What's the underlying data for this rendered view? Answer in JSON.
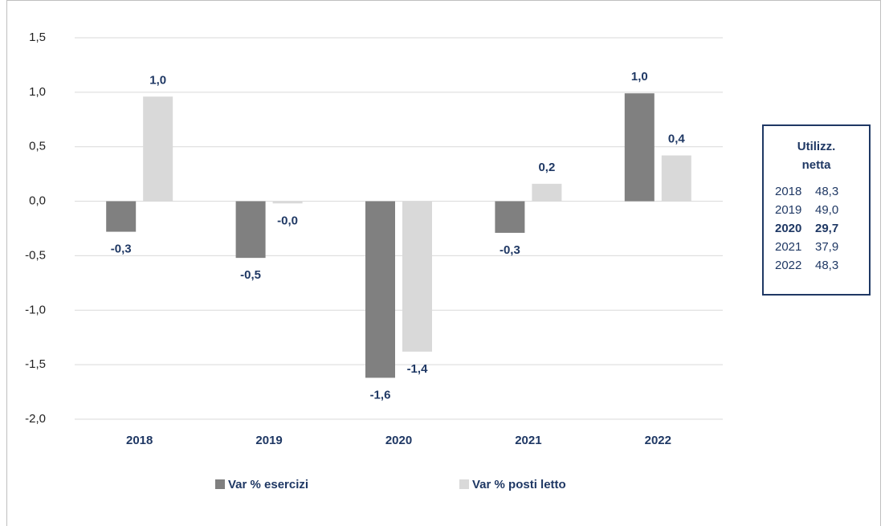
{
  "chart_data": {
    "type": "bar",
    "categories": [
      "2018",
      "2019",
      "2020",
      "2021",
      "2022"
    ],
    "series": [
      {
        "name": "Var % esercizi",
        "color": "#808080",
        "values": [
          -0.28,
          -0.52,
          -1.62,
          -0.29,
          0.99
        ],
        "value_labels": [
          "-0,3",
          "-0,5",
          "-1,6",
          "-0,3",
          "1,0"
        ]
      },
      {
        "name": "Var % posti letto",
        "color": "#d9d9d9",
        "values": [
          0.96,
          -0.02,
          -1.38,
          0.16,
          0.42
        ],
        "value_labels": [
          "1,0",
          "-0,0",
          "-1,4",
          "0,2",
          "0,4"
        ]
      }
    ],
    "ylim": [
      -2.0,
      1.5
    ],
    "yticks": [
      {
        "value": -2.0,
        "label": "-2,0"
      },
      {
        "value": -1.5,
        "label": "-1,5"
      },
      {
        "value": -1.0,
        "label": "-1,0"
      },
      {
        "value": -0.5,
        "label": "-0,5"
      },
      {
        "value": 0.0,
        "label": "0,0"
      },
      {
        "value": 0.5,
        "label": "0,5"
      },
      {
        "value": 1.0,
        "label": "1,0"
      },
      {
        "value": 1.5,
        "label": "1,5"
      }
    ],
    "grid": true,
    "legend": "bottom",
    "side_table": {
      "title": "Utilizz. netta",
      "rows": [
        {
          "year": "2018",
          "value": "48,3"
        },
        {
          "year": "2019",
          "value": "49,0"
        },
        {
          "year": "2020",
          "value": "29,7",
          "bold": true
        },
        {
          "year": "2021",
          "value": "37,9"
        },
        {
          "year": "2022",
          "value": "48,3"
        }
      ]
    }
  }
}
